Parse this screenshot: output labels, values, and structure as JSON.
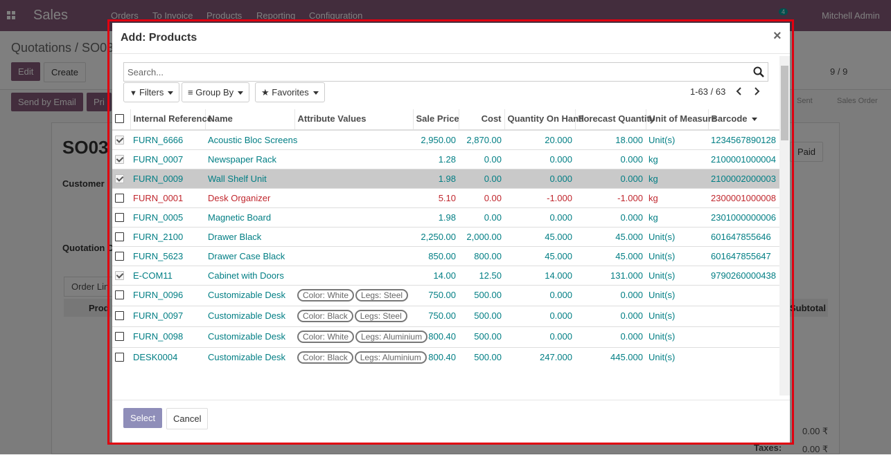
{
  "navbar": {
    "app": "Sales",
    "menu": [
      "Orders",
      "To Invoice",
      "Products",
      "Reporting",
      "Configuration"
    ],
    "badge": "4",
    "user": "Mitchell Admin"
  },
  "background": {
    "breadcrumb": "Quotations / SO03",
    "buttons": [
      "Edit",
      "Create"
    ],
    "pager": "9 / 9",
    "actions": [
      "Send by Email",
      "Pri"
    ],
    "statuses": [
      "Sent",
      "Sales Order"
    ],
    "record": "SO03",
    "fields": [
      "Customer",
      "Quotation D"
    ],
    "paid": "Paid",
    "tab": "Order Lin",
    "columns": [
      "Prod",
      "Subtotal"
    ],
    "totals": [
      "0.00 ₹",
      "0.00 ₹"
    ],
    "taxes": "Taxes:"
  },
  "dialog": {
    "title": "Add: Products",
    "close": "×",
    "search_placeholder": "Search...",
    "filters": [
      "Filters",
      "Group By",
      "Favorites"
    ],
    "pager": "1-63 / 63",
    "columns": [
      "Internal Reference",
      "Name",
      "Attribute Values",
      "Sale Price",
      "Cost",
      "Quantity On Hand",
      "Forecast Quantity",
      "Unit of Measure",
      "Barcode"
    ],
    "rows": [
      {
        "checked": true,
        "ref": "FURN_6666",
        "name": "Acoustic Bloc Screens",
        "attributes": [],
        "sale": "2,950.00",
        "cost": "2,870.00",
        "qty": "20.000",
        "forecast": "18.000",
        "uom": "Unit(s)",
        "barcode": "1234567890128"
      },
      {
        "checked": true,
        "ref": "FURN_0007",
        "name": "Newspaper Rack",
        "attributes": [],
        "sale": "1.28",
        "cost": "0.00",
        "qty": "0.000",
        "forecast": "0.000",
        "uom": "kg",
        "barcode": "2100001000004"
      },
      {
        "checked": true,
        "highlighted": true,
        "ref": "FURN_0009",
        "name": "Wall Shelf Unit",
        "attributes": [],
        "sale": "1.98",
        "cost": "0.00",
        "qty": "0.000",
        "forecast": "0.000",
        "uom": "kg",
        "barcode": "2100002000003"
      },
      {
        "checked": false,
        "warning": true,
        "ref": "FURN_0001",
        "name": "Desk Organizer",
        "attributes": [],
        "sale": "5.10",
        "cost": "0.00",
        "qty": "-1.000",
        "forecast": "-1.000",
        "uom": "kg",
        "barcode": "2300001000008"
      },
      {
        "checked": false,
        "ref": "FURN_0005",
        "name": "Magnetic Board",
        "attributes": [],
        "sale": "1.98",
        "cost": "0.00",
        "qty": "0.000",
        "forecast": "0.000",
        "uom": "kg",
        "barcode": "2301000000006"
      },
      {
        "checked": false,
        "ref": "FURN_2100",
        "name": "Drawer Black",
        "attributes": [],
        "sale": "2,250.00",
        "cost": "2,000.00",
        "qty": "45.000",
        "forecast": "45.000",
        "uom": "Unit(s)",
        "barcode": "601647855646"
      },
      {
        "checked": false,
        "ref": "FURN_5623",
        "name": "Drawer Case Black",
        "attributes": [],
        "sale": "850.00",
        "cost": "800.00",
        "qty": "45.000",
        "forecast": "45.000",
        "uom": "Unit(s)",
        "barcode": "601647855647"
      },
      {
        "checked": true,
        "ref": "E-COM11",
        "name": "Cabinet with Doors",
        "attributes": [],
        "sale": "14.00",
        "cost": "12.50",
        "qty": "14.000",
        "forecast": "131.000",
        "uom": "Unit(s)",
        "barcode": "9790260000438"
      },
      {
        "checked": false,
        "ref": "FURN_0096",
        "name": "Customizable Desk",
        "attributes": [
          "Color: White",
          "Legs: Steel"
        ],
        "sale": "750.00",
        "cost": "500.00",
        "qty": "0.000",
        "forecast": "0.000",
        "uom": "Unit(s)"
      },
      {
        "checked": false,
        "ref": "FURN_0097",
        "name": "Customizable Desk",
        "attributes": [
          "Color: Black",
          "Legs: Steel"
        ],
        "sale": "750.00",
        "cost": "500.00",
        "qty": "0.000",
        "forecast": "0.000",
        "uom": "Unit(s)"
      },
      {
        "checked": false,
        "ref": "FURN_0098",
        "name": "Customizable Desk",
        "attributes": [
          "Color: White",
          "Legs: Aluminium"
        ],
        "sale": "800.40",
        "cost": "500.00",
        "qty": "0.000",
        "forecast": "0.000",
        "uom": "Unit(s)"
      },
      {
        "checked": false,
        "ref": "DESK0004",
        "name": "Customizable Desk",
        "attributes": [
          "Color: Black",
          "Legs: Aluminium"
        ],
        "sale": "800.40",
        "cost": "500.00",
        "qty": "247.000",
        "forecast": "445.000",
        "uom": "Unit(s)"
      }
    ],
    "buttons": [
      "Select",
      "Cancel"
    ]
  }
}
